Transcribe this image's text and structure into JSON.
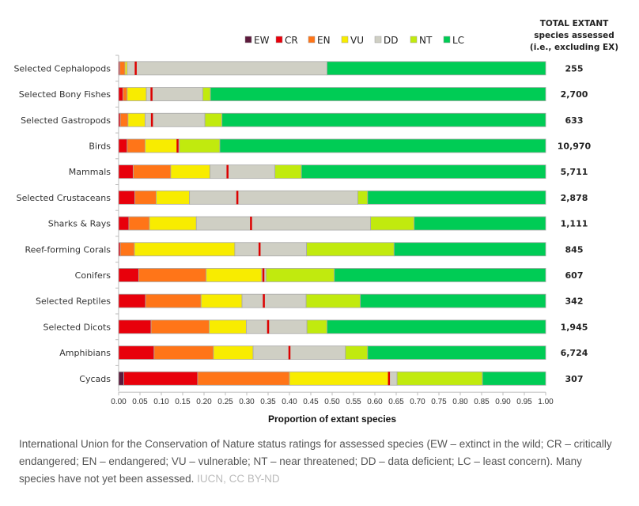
{
  "chart_data": {
    "type": "bar",
    "orientation": "horizontal",
    "stacked": true,
    "xlabel": "Proportion of extant species",
    "ylabel": "",
    "xlim": [
      0,
      1
    ],
    "x_ticks": [
      "0.00",
      "0.05",
      "0.10",
      "0.15",
      "0.20",
      "0.25",
      "0.30",
      "0.35",
      "0.40",
      "0.45",
      "0.50",
      "0.55",
      "0.60",
      "0.65",
      "0.70",
      "0.75",
      "0.80",
      "0.85",
      "0.90",
      "0.95",
      "1.00"
    ],
    "legend_placement": "top",
    "legend": [
      {
        "key": "EW",
        "color": "#5c1a3c"
      },
      {
        "key": "CR",
        "color": "#e8000b"
      },
      {
        "key": "EN",
        "color": "#ff7518"
      },
      {
        "key": "VU",
        "color": "#f8ec00"
      },
      {
        "key": "DD",
        "color": "#cfcfc4"
      },
      {
        "key": "NT",
        "color": "#c1ea0e"
      },
      {
        "key": "LC",
        "color": "#00cc55"
      }
    ],
    "threatened_marker_color": "#dd0000",
    "totals_header": [
      "TOTAL EXTANT",
      "species assessed",
      "(i.e., excluding EX)"
    ],
    "categories": [
      "Selected Cephalopods",
      "Selected Bony Fishes",
      "Selected Gastropods",
      "Birds",
      "Mammals",
      "Selected Crustaceans",
      "Sharks & Rays",
      "Reef-forming Corals",
      "Conifers",
      "Selected Reptiles",
      "Selected Dicots",
      "Amphibians",
      "Cycads"
    ],
    "totals": [
      "255",
      "2,700",
      "633",
      "10,970",
      "5,711",
      "2,878",
      "1,111",
      "845",
      "607",
      "342",
      "1,945",
      "6,724",
      "307"
    ],
    "series": [
      {
        "name": "EW",
        "values": [
          0,
          0,
          0,
          0,
          0,
          0,
          0,
          0,
          0,
          0,
          0,
          0,
          0.012
        ]
      },
      {
        "name": "CR",
        "values": [
          0.003,
          0.01,
          0.004,
          0.02,
          0.034,
          0.038,
          0.024,
          0.004,
          0.047,
          0.063,
          0.076,
          0.083,
          0.173
        ]
      },
      {
        "name": "EN",
        "values": [
          0.012,
          0.01,
          0.018,
          0.042,
          0.088,
          0.05,
          0.048,
          0.033,
          0.158,
          0.13,
          0.136,
          0.139,
          0.215
        ]
      },
      {
        "name": "VU",
        "values": [
          0.005,
          0.045,
          0.04,
          0.075,
          0.092,
          0.078,
          0.11,
          0.235,
          0.13,
          0.096,
          0.087,
          0.093,
          0.232
        ]
      },
      {
        "name": "DD",
        "values": [
          0.468,
          0.132,
          0.14,
          0.005,
          0.152,
          0.394,
          0.408,
          0.168,
          0.01,
          0.15,
          0.142,
          0.216,
          0.02
        ]
      },
      {
        "name": "NT",
        "values": [
          0,
          0.018,
          0.04,
          0.095,
          0.062,
          0.023,
          0.102,
          0.205,
          0.16,
          0.127,
          0.047,
          0.052,
          0.2
        ]
      },
      {
        "name": "LC",
        "values": [
          0.512,
          0.785,
          0.758,
          0.763,
          0.572,
          0.417,
          0.308,
          0.355,
          0.495,
          0.434,
          0.512,
          0.417,
          0.148
        ]
      }
    ],
    "threatened_marker": [
      0.04,
      0.077,
      0.078,
      0.138,
      0.255,
      0.278,
      0.31,
      0.33,
      0.339,
      0.34,
      0.35,
      0.4,
      0.633
    ]
  },
  "caption": {
    "text": "International Union for the Conservation of Nature status ratings for assessed species (EW – extinct in the wild; CR – critically endangered; EN – endangered; VU – vulnerable; NT – near threatened; DD – data deficient; LC – least concern). Many species have not yet been assessed.",
    "credit": "IUCN, CC BY-ND"
  }
}
